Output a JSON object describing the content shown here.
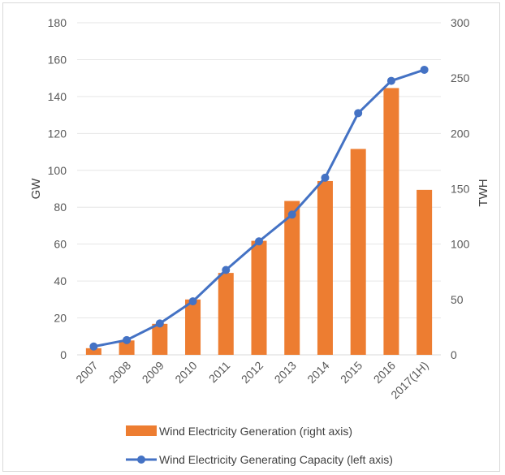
{
  "chart_data": {
    "type": "bar",
    "categories": [
      "2007",
      "2008",
      "2009",
      "2010",
      "2011",
      "2012",
      "2013",
      "2014",
      "2015",
      "2016",
      "2017(1H)"
    ],
    "series": [
      {
        "name": "Wind Electricity Generation (right axis)",
        "type": "bar",
        "axis": "right",
        "color": "#ed7d31",
        "values": [
          6,
          13,
          28,
          50,
          74,
          103,
          139,
          157,
          186,
          241,
          149
        ]
      },
      {
        "name": "Wind Electricity Generating Capacity (left axis)",
        "type": "line",
        "axis": "left",
        "color": "#4472c4",
        "values": [
          4.5,
          8,
          17,
          29,
          46,
          61.5,
          76,
          96,
          131,
          148.5,
          154.5
        ]
      }
    ],
    "left_axis": {
      "label": "GW",
      "ylim": [
        0,
        180
      ],
      "ticks": [
        "0",
        "20",
        "40",
        "60",
        "80",
        "100",
        "120",
        "140",
        "160",
        "180"
      ]
    },
    "right_axis": {
      "label": "TWH",
      "ylim": [
        0,
        300
      ],
      "ticks": [
        "0",
        "50",
        "100",
        "150",
        "200",
        "250",
        "300"
      ]
    },
    "grid": true,
    "legend_position": "bottom"
  }
}
